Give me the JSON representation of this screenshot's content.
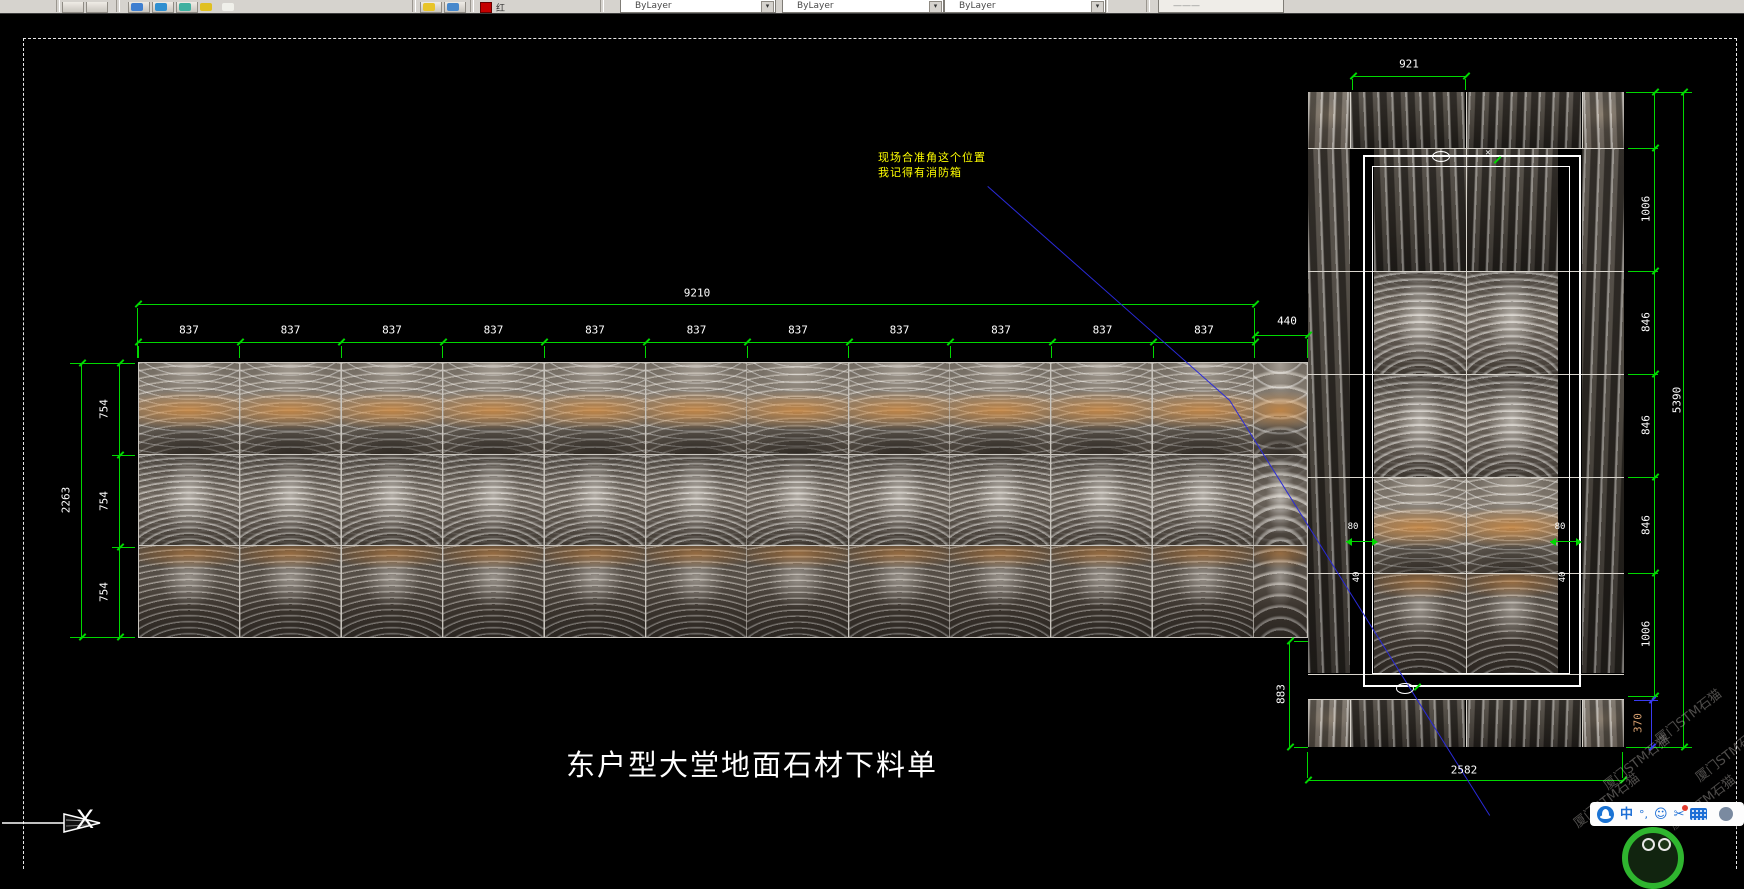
{
  "toolbar": {
    "combo_values": [
      "ByLayer",
      "ByLayer",
      "ByLayer"
    ],
    "layer_name": "红"
  },
  "annotation": {
    "line1": "现场合准角这个位置",
    "line2": "我记得有消防箱"
  },
  "title": "东户型大堂地面石材下料单",
  "ucs_axis_label": "X",
  "watermark_text": "厦门STM石猫",
  "panel_main": {
    "overall_width": "9210",
    "column_widths": [
      "837",
      "837",
      "837",
      "837",
      "837",
      "837",
      "837",
      "837",
      "837",
      "837",
      "837"
    ],
    "end_column_width": "440",
    "overall_height": "2263",
    "row_heights": [
      "754",
      "754",
      "754"
    ]
  },
  "panel_side": {
    "top_width": "921",
    "bottom_width": "2582",
    "overall_height": "5390",
    "right_segments": [
      "1006",
      "846",
      "846",
      "846",
      "1006"
    ],
    "bottom_inset": "370",
    "left_bottom_height": "883",
    "border_band": "80",
    "border_line": "40",
    "corner_mark": "✕"
  },
  "ime": {
    "mode_label": "中",
    "punct_label": "°,",
    "emoji_label": "☺",
    "scissors_label": "✂"
  },
  "colors": {
    "dim_green": "#00d800",
    "annotation_yellow": "#ffff00",
    "leader_blue": "#2a2ad8",
    "inset_dim_blue": "#3a3af0",
    "inset_label_tan": "#d8a070"
  }
}
